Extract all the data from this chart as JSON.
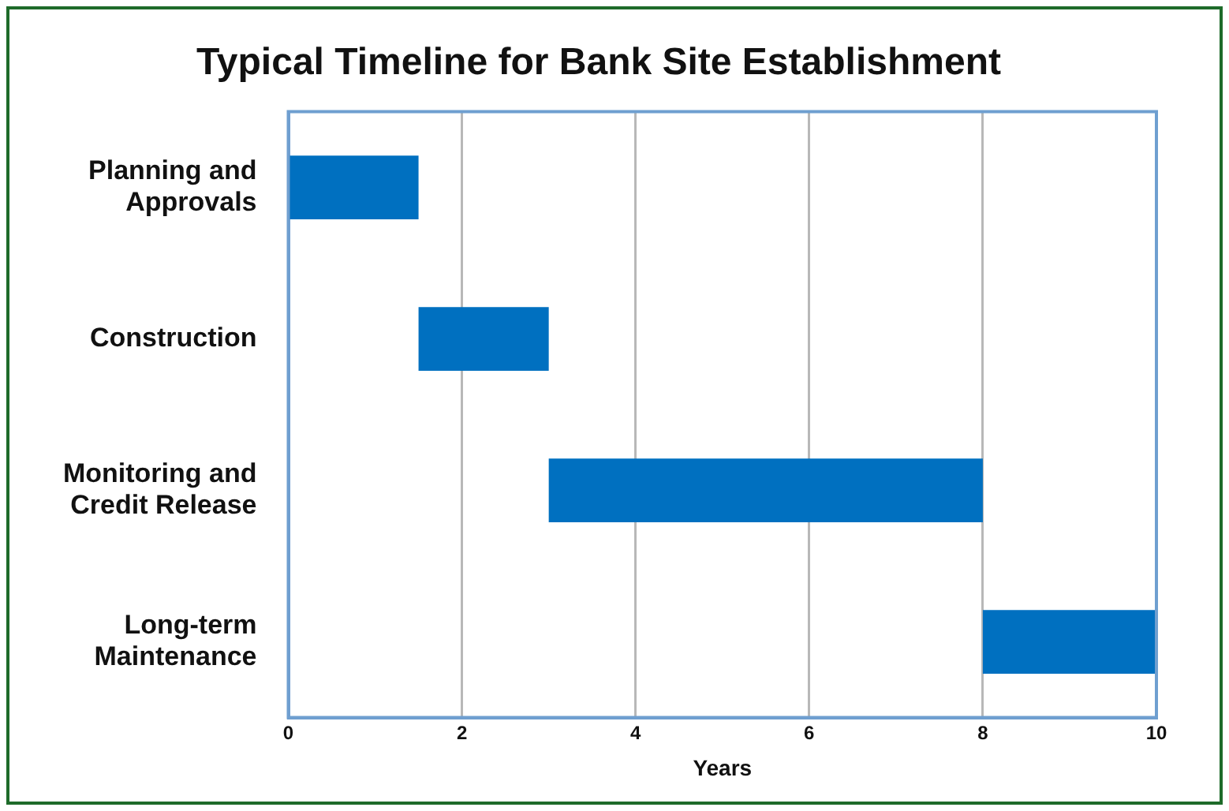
{
  "chart_data": {
    "type": "bar",
    "title": "Typical Timeline for Bank Site Establishment",
    "xlabel": "Years",
    "orientation": "horizontal",
    "categories": [
      "Planning and Approvals",
      "Construction",
      "Monitoring and Credit Release",
      "Long-term Maintenance"
    ],
    "base": [
      0,
      1.5,
      3,
      8
    ],
    "values": [
      1.5,
      1.5,
      5,
      2
    ],
    "color": "#0070c0",
    "xlim": [
      0,
      10
    ],
    "xticks": [
      0,
      2,
      4,
      6,
      8,
      10
    ],
    "grid": "x",
    "legend": false
  }
}
